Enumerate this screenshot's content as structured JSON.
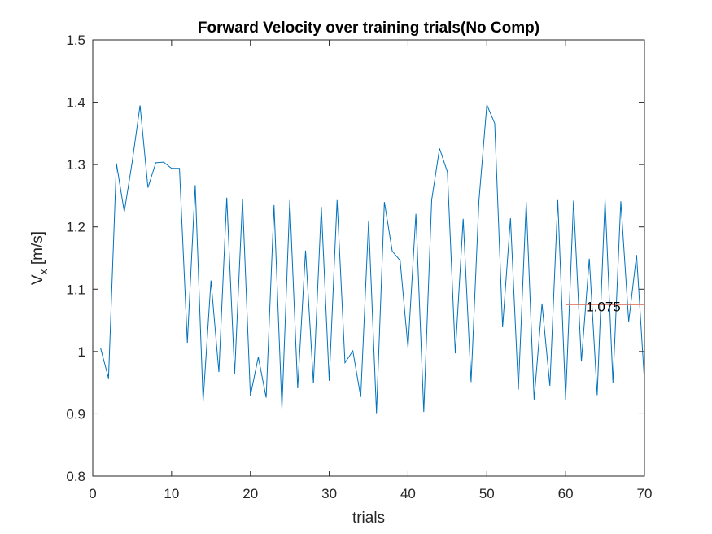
{
  "chart_data": {
    "type": "line",
    "title": "Forward Velocity over training trials(No Comp)",
    "xlabel": "trials",
    "ylabel_main": "V",
    "ylabel_sub": "x",
    "ylabel_unit": " [m/s]",
    "xlim": [
      0,
      70
    ],
    "ylim": [
      0.8,
      1.5
    ],
    "xticks": [
      0,
      10,
      20,
      30,
      40,
      50,
      60,
      70
    ],
    "yticks": [
      0.8,
      0.9,
      1.0,
      1.1,
      1.2,
      1.3,
      1.4,
      1.5
    ],
    "xtick_labels": [
      "0",
      "10",
      "20",
      "30",
      "40",
      "50",
      "60",
      "70"
    ],
    "ytick_labels": [
      "0.8",
      "0.9",
      "1",
      "1.1",
      "1.2",
      "1.3",
      "1.4",
      "1.5"
    ],
    "grid": false,
    "series": [
      {
        "color": "#0072bd",
        "x": [
          1,
          2,
          3,
          4,
          5,
          6,
          7,
          8,
          9,
          10,
          11,
          12,
          13,
          14,
          15,
          16,
          17,
          18,
          19,
          20,
          21,
          22,
          23,
          24,
          25,
          26,
          27,
          28,
          29,
          30,
          31,
          32,
          33,
          34,
          35,
          36,
          37,
          38,
          39,
          40,
          41,
          42,
          43,
          44,
          45,
          46,
          47,
          48,
          49,
          50,
          51,
          52,
          53,
          54,
          55,
          56,
          57,
          58,
          59,
          60,
          61,
          62,
          63,
          64,
          65,
          66,
          67,
          68,
          69,
          70
        ],
        "y": [
          1.005,
          0.957,
          1.302,
          1.224,
          1.304,
          1.395,
          1.263,
          1.303,
          1.304,
          1.294,
          1.294,
          1.014,
          1.267,
          0.92,
          1.114,
          0.967,
          1.247,
          0.964,
          1.244,
          0.929,
          0.991,
          0.926,
          1.235,
          0.908,
          1.243,
          0.941,
          1.162,
          0.949,
          1.232,
          0.953,
          1.243,
          0.982,
          1.001,
          0.927,
          1.21,
          0.901,
          1.24,
          1.161,
          1.146,
          1.006,
          1.221,
          0.903,
          1.243,
          1.326,
          1.288,
          0.997,
          1.213,
          0.951,
          1.242,
          1.396,
          1.366,
          1.039,
          1.214,
          0.939,
          1.24,
          0.923,
          1.077,
          0.945,
          1.243,
          0.923,
          1.242,
          0.984,
          1.149,
          0.93,
          1.244,
          0.95,
          1.241,
          1.048,
          1.155,
          0.952
        ]
      },
      {
        "color": "#e07b6a",
        "x": [
          60,
          70
        ],
        "y": [
          1.075,
          1.075
        ]
      }
    ],
    "annotation": {
      "text": "1.075",
      "x": 63,
      "y": 1.075
    }
  }
}
